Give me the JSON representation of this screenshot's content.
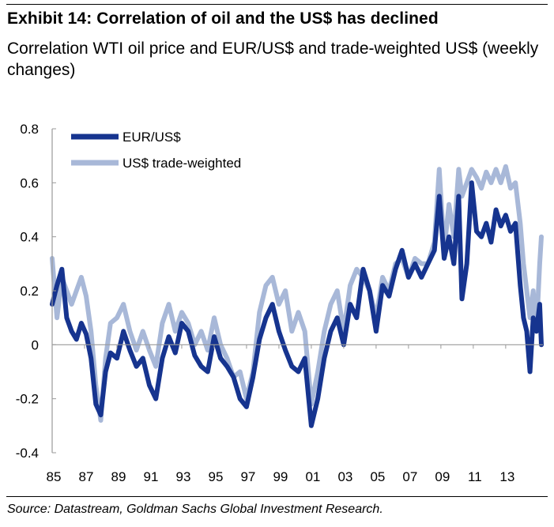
{
  "header": {
    "title": "Exhibit 14: Correlation of oil and the US$ has declined",
    "subtitle": "Correlation WTI oil price and EUR/US$ and trade-weighted US$ (weekly changes)"
  },
  "footer": {
    "source": "Source: Datastream, Goldman Sachs Global Investment Research."
  },
  "chart_data": {
    "type": "line",
    "title": "Exhibit 14: Correlation of oil and the US$ has declined",
    "subtitle": "Correlation WTI oil price and EUR/US$ and trade-weighted US$ (weekly changes)",
    "xlabel": "",
    "ylabel": "",
    "xlim": [
      1985,
      2015.3
    ],
    "ylim": [
      -0.4,
      0.8
    ],
    "yticks": [
      -0.4,
      -0.2,
      0,
      0.2,
      0.4,
      0.6,
      0.8
    ],
    "ytick_labels": [
      "-0.4",
      "-0.2",
      "0",
      "0.2",
      "0.4",
      "0.6",
      "0.8"
    ],
    "xticks": [
      1985,
      1987,
      1989,
      1991,
      1993,
      1995,
      1997,
      1999,
      2001,
      2003,
      2005,
      2007,
      2009,
      2011,
      2013
    ],
    "xtick_labels": [
      "85",
      "87",
      "89",
      "91",
      "93",
      "95",
      "97",
      "99",
      "01",
      "03",
      "05",
      "07",
      "09",
      "11",
      "13"
    ],
    "grid": false,
    "legend": "top-left",
    "colors": {
      "eurusd": "#16348f",
      "twi": "#a8b8d8"
    },
    "series": [
      {
        "name": "EUR/US$",
        "x": [
          1985.0,
          1985.3,
          1985.6,
          1985.9,
          1986.2,
          1986.5,
          1986.8,
          1987.1,
          1987.4,
          1987.7,
          1988.0,
          1988.3,
          1988.6,
          1989.0,
          1989.4,
          1989.8,
          1990.2,
          1990.6,
          1991.0,
          1991.4,
          1991.8,
          1992.2,
          1992.6,
          1993.0,
          1993.4,
          1993.8,
          1994.2,
          1994.6,
          1995.0,
          1995.4,
          1995.8,
          1996.2,
          1996.6,
          1997.0,
          1997.4,
          1997.8,
          1998.2,
          1998.6,
          1999.0,
          1999.4,
          1999.8,
          2000.2,
          2000.6,
          2001.0,
          2001.4,
          2001.8,
          2002.2,
          2002.6,
          2003.0,
          2003.4,
          2003.8,
          2004.2,
          2004.6,
          2005.0,
          2005.4,
          2005.8,
          2006.2,
          2006.6,
          2007.0,
          2007.4,
          2007.8,
          2008.2,
          2008.6,
          2008.9,
          2009.2,
          2009.5,
          2009.8,
          2010.1,
          2010.3,
          2010.6,
          2010.9,
          2011.2,
          2011.5,
          2011.8,
          2012.1,
          2012.4,
          2012.7,
          2013.0,
          2013.3,
          2013.6,
          2013.9,
          2014.1,
          2014.3,
          2014.5,
          2014.7,
          2014.9,
          2015.1,
          2015.2
        ],
        "values": [
          0.15,
          0.22,
          0.28,
          0.1,
          0.05,
          0.02,
          0.08,
          0.04,
          -0.05,
          -0.22,
          -0.26,
          -0.1,
          -0.03,
          -0.05,
          0.05,
          -0.02,
          -0.08,
          -0.05,
          -0.15,
          -0.2,
          -0.05,
          0.03,
          -0.03,
          0.08,
          0.05,
          -0.04,
          -0.08,
          -0.1,
          0.03,
          -0.05,
          -0.08,
          -0.12,
          -0.2,
          -0.23,
          -0.12,
          0.02,
          0.1,
          0.15,
          0.05,
          -0.02,
          -0.08,
          -0.1,
          -0.05,
          -0.3,
          -0.2,
          -0.05,
          0.05,
          0.1,
          0.0,
          0.15,
          0.1,
          0.28,
          0.2,
          0.05,
          0.22,
          0.18,
          0.28,
          0.35,
          0.25,
          0.3,
          0.25,
          0.3,
          0.35,
          0.55,
          0.32,
          0.4,
          0.3,
          0.55,
          0.17,
          0.3,
          0.6,
          0.42,
          0.4,
          0.45,
          0.38,
          0.5,
          0.44,
          0.48,
          0.42,
          0.45,
          0.22,
          0.1,
          0.05,
          -0.1,
          0.1,
          0.05,
          0.15,
          0.0
        ]
      },
      {
        "name": "US$ trade-weighted",
        "x": [
          1985.0,
          1985.3,
          1985.6,
          1985.9,
          1986.2,
          1986.5,
          1986.8,
          1987.1,
          1987.4,
          1987.7,
          1988.0,
          1988.3,
          1988.6,
          1989.0,
          1989.4,
          1989.8,
          1990.2,
          1990.6,
          1991.0,
          1991.4,
          1991.8,
          1992.2,
          1992.6,
          1993.0,
          1993.4,
          1993.8,
          1994.2,
          1994.6,
          1995.0,
          1995.4,
          1995.8,
          1996.2,
          1996.6,
          1997.0,
          1997.4,
          1997.8,
          1998.2,
          1998.6,
          1999.0,
          1999.4,
          1999.8,
          2000.2,
          2000.6,
          2001.0,
          2001.4,
          2001.8,
          2002.2,
          2002.6,
          2003.0,
          2003.4,
          2003.8,
          2004.2,
          2004.6,
          2005.0,
          2005.4,
          2005.8,
          2006.2,
          2006.6,
          2007.0,
          2007.4,
          2007.8,
          2008.2,
          2008.6,
          2008.9,
          2009.2,
          2009.5,
          2009.8,
          2010.1,
          2010.3,
          2010.6,
          2010.9,
          2011.2,
          2011.5,
          2011.8,
          2012.1,
          2012.4,
          2012.7,
          2013.0,
          2013.3,
          2013.6,
          2013.9,
          2014.1,
          2014.3,
          2014.5,
          2014.7,
          2014.9,
          2015.1,
          2015.2
        ],
        "values": [
          0.32,
          0.1,
          0.25,
          0.2,
          0.15,
          0.2,
          0.25,
          0.18,
          0.05,
          -0.15,
          -0.28,
          -0.05,
          0.08,
          0.1,
          0.15,
          0.05,
          -0.02,
          0.05,
          -0.02,
          -0.08,
          0.08,
          0.15,
          0.05,
          0.12,
          0.08,
          0.0,
          0.05,
          -0.02,
          0.1,
          0.0,
          -0.05,
          -0.12,
          -0.1,
          -0.2,
          -0.1,
          0.12,
          0.22,
          0.25,
          0.15,
          0.2,
          0.05,
          0.12,
          0.05,
          -0.22,
          -0.1,
          0.05,
          0.15,
          0.2,
          0.05,
          0.22,
          0.28,
          0.25,
          0.2,
          0.1,
          0.25,
          0.2,
          0.3,
          0.32,
          0.25,
          0.32,
          0.3,
          0.3,
          0.38,
          0.65,
          0.35,
          0.52,
          0.4,
          0.65,
          0.55,
          0.6,
          0.65,
          0.62,
          0.58,
          0.64,
          0.6,
          0.65,
          0.6,
          0.66,
          0.58,
          0.6,
          0.45,
          0.3,
          0.2,
          0.1,
          0.2,
          0.05,
          0.3,
          0.4
        ]
      }
    ]
  }
}
